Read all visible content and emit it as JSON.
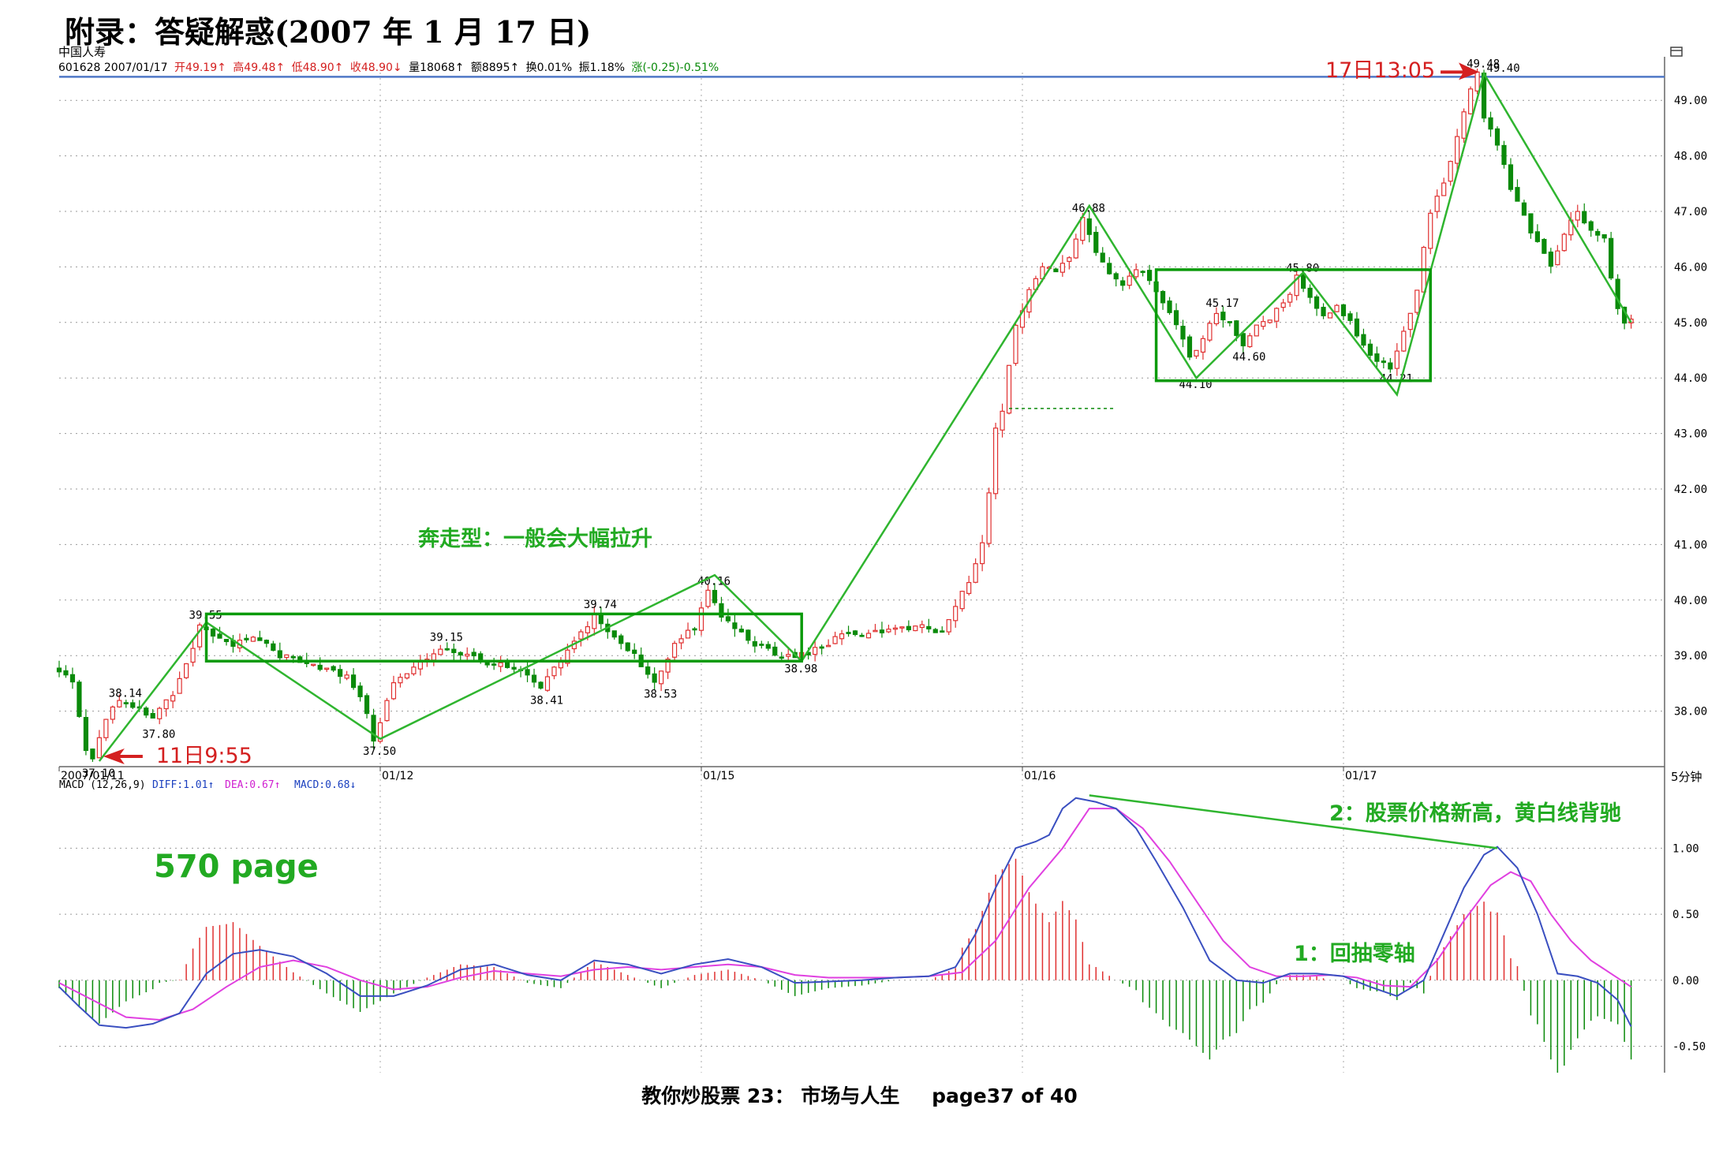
{
  "document": {
    "title": "附录：答疑解惑(2007 年 1 月 17 日)",
    "footer_left": "教你炒股票 23：  市场与人生",
    "footer_right": "page37 of 40"
  },
  "header": {
    "stock_name": "中国人寿",
    "info": {
      "code_date": "601628 2007/01/17",
      "open": "开49.19↑",
      "high": "高49.48↑",
      "low": "低48.90↑",
      "close": "收48.90↓",
      "volume": "量18068↑",
      "amount": "额8895↑",
      "turnover": "换0.01%",
      "amplitude": "振1.18%",
      "change": "涨(-0.25)-0.51%"
    },
    "corner_icon": "window-icon"
  },
  "chart_data": [
    {
      "type": "candlestick",
      "title": "",
      "interval_label": "5分钟",
      "ylim": [
        37.0,
        49.5
      ],
      "yticks": [
        "38.00",
        "39.00",
        "40.00",
        "41.00",
        "42.00",
        "43.00",
        "44.00",
        "45.00",
        "46.00",
        "47.00",
        "48.00",
        "49.00"
      ],
      "date_labels": [
        {
          "label": "2007/01/11",
          "i": 0
        },
        {
          "label": "01/12",
          "i": 48
        },
        {
          "label": "01/15",
          "i": 96
        },
        {
          "label": "01/16",
          "i": 144
        },
        {
          "label": "01/17",
          "i": 192
        }
      ],
      "price_path": [
        {
          "i": 0,
          "p": 38.8
        },
        {
          "i": 3,
          "p": 38.5
        },
        {
          "i": 5,
          "p": 37.3
        },
        {
          "i": 6,
          "p": 37.1
        },
        {
          "i": 8,
          "p": 37.9
        },
        {
          "i": 10,
          "p": 38.14
        },
        {
          "i": 13,
          "p": 38.1
        },
        {
          "i": 15,
          "p": 37.85
        },
        {
          "i": 18,
          "p": 38.3
        },
        {
          "i": 20,
          "p": 38.8
        },
        {
          "i": 22,
          "p": 39.55
        },
        {
          "i": 24,
          "p": 39.4
        },
        {
          "i": 27,
          "p": 39.2
        },
        {
          "i": 31,
          "p": 39.3
        },
        {
          "i": 34,
          "p": 39.0
        },
        {
          "i": 38,
          "p": 38.9
        },
        {
          "i": 42,
          "p": 38.7
        },
        {
          "i": 44,
          "p": 38.6
        },
        {
          "i": 46,
          "p": 38.3
        },
        {
          "i": 48,
          "p": 37.5
        },
        {
          "i": 51,
          "p": 38.5
        },
        {
          "i": 55,
          "p": 38.85
        },
        {
          "i": 58,
          "p": 39.15
        },
        {
          "i": 62,
          "p": 39.0
        },
        {
          "i": 66,
          "p": 38.85
        },
        {
          "i": 70,
          "p": 38.7
        },
        {
          "i": 73,
          "p": 38.41
        },
        {
          "i": 76,
          "p": 38.9
        },
        {
          "i": 79,
          "p": 39.4
        },
        {
          "i": 81,
          "p": 39.74
        },
        {
          "i": 84,
          "p": 39.3
        },
        {
          "i": 87,
          "p": 39.0
        },
        {
          "i": 90,
          "p": 38.53
        },
        {
          "i": 93,
          "p": 39.2
        },
        {
          "i": 96,
          "p": 39.5
        },
        {
          "i": 98,
          "p": 40.16
        },
        {
          "i": 100,
          "p": 39.7
        },
        {
          "i": 104,
          "p": 39.3
        },
        {
          "i": 108,
          "p": 39.0
        },
        {
          "i": 111,
          "p": 38.98
        },
        {
          "i": 114,
          "p": 39.1
        },
        {
          "i": 118,
          "p": 39.35
        },
        {
          "i": 124,
          "p": 39.45
        },
        {
          "i": 130,
          "p": 39.5
        },
        {
          "i": 133,
          "p": 39.4
        },
        {
          "i": 135,
          "p": 39.9
        },
        {
          "i": 137,
          "p": 40.3
        },
        {
          "i": 139,
          "p": 41.0
        },
        {
          "i": 140,
          "p": 41.9
        },
        {
          "i": 141,
          "p": 43.1
        },
        {
          "i": 142,
          "p": 43.45
        },
        {
          "i": 144,
          "p": 44.9
        },
        {
          "i": 146,
          "p": 45.6
        },
        {
          "i": 148,
          "p": 46.0
        },
        {
          "i": 150,
          "p": 45.9
        },
        {
          "i": 152,
          "p": 46.2
        },
        {
          "i": 154,
          "p": 46.88
        },
        {
          "i": 156,
          "p": 46.3
        },
        {
          "i": 158,
          "p": 45.9
        },
        {
          "i": 160,
          "p": 45.7
        },
        {
          "i": 162,
          "p": 46.0
        },
        {
          "i": 164,
          "p": 45.8
        },
        {
          "i": 166,
          "p": 45.4
        },
        {
          "i": 168,
          "p": 44.9
        },
        {
          "i": 170,
          "p": 44.4
        },
        {
          "i": 172,
          "p": 44.7
        },
        {
          "i": 174,
          "p": 45.17
        },
        {
          "i": 176,
          "p": 45.0
        },
        {
          "i": 178,
          "p": 44.6
        },
        {
          "i": 180,
          "p": 44.9
        },
        {
          "i": 182,
          "p": 45.1
        },
        {
          "i": 184,
          "p": 45.3
        },
        {
          "i": 186,
          "p": 45.8
        },
        {
          "i": 188,
          "p": 45.5
        },
        {
          "i": 190,
          "p": 45.1
        },
        {
          "i": 192,
          "p": 45.3
        },
        {
          "i": 194,
          "p": 45.0
        },
        {
          "i": 196,
          "p": 44.6
        },
        {
          "i": 198,
          "p": 44.3
        },
        {
          "i": 200,
          "p": 44.21
        },
        {
          "i": 202,
          "p": 44.8
        },
        {
          "i": 204,
          "p": 45.6
        },
        {
          "i": 206,
          "p": 47.0
        },
        {
          "i": 208,
          "p": 47.5
        },
        {
          "i": 210,
          "p": 48.3
        },
        {
          "i": 212,
          "p": 49.2
        },
        {
          "i": 213,
          "p": 49.48
        },
        {
          "i": 214,
          "p": 48.7
        },
        {
          "i": 216,
          "p": 48.2
        },
        {
          "i": 218,
          "p": 47.4
        },
        {
          "i": 220,
          "p": 46.9
        },
        {
          "i": 222,
          "p": 46.4
        },
        {
          "i": 224,
          "p": 46.0
        },
        {
          "i": 226,
          "p": 46.6
        },
        {
          "i": 228,
          "p": 47.0
        },
        {
          "i": 230,
          "p": 46.7
        },
        {
          "i": 232,
          "p": 46.5
        },
        {
          "i": 234,
          "p": 45.2
        },
        {
          "i": 235,
          "p": 45.0
        }
      ],
      "price_labels": [
        {
          "text": "38.14",
          "i": 10,
          "p": 38.14
        },
        {
          "text": "37.80",
          "i": 15,
          "p": 37.8
        },
        {
          "text": "37.10",
          "i": 6,
          "p": 37.1
        },
        {
          "text": "39.55",
          "i": 22,
          "p": 39.55
        },
        {
          "text": "37.50",
          "i": 48,
          "p": 37.5
        },
        {
          "text": "39.15",
          "i": 58,
          "p": 39.15
        },
        {
          "text": "38.41",
          "i": 73,
          "p": 38.41
        },
        {
          "text": "39.74",
          "i": 81,
          "p": 39.74
        },
        {
          "text": "38.53",
          "i": 90,
          "p": 38.53
        },
        {
          "text": "40.16",
          "i": 98,
          "p": 40.16
        },
        {
          "text": "38.98",
          "i": 111,
          "p": 38.98
        },
        {
          "text": "46.88",
          "i": 154,
          "p": 46.88
        },
        {
          "text": "45.17",
          "i": 174,
          "p": 45.17
        },
        {
          "text": "44.60",
          "i": 178,
          "p": 44.6
        },
        {
          "text": "44.10",
          "i": 170,
          "p": 44.1
        },
        {
          "text": "45.80",
          "i": 186,
          "p": 45.8
        },
        {
          "text": "44.21",
          "i": 200,
          "p": 44.21
        },
        {
          "text": "49.48",
          "i": 213,
          "p": 49.48
        },
        {
          "text": "49.40",
          "i": 216,
          "p": 49.4
        }
      ],
      "reference_line": 49.48,
      "annotations": {
        "breakaway": "奔走型：一般会大幅拉升",
        "start_time": "11日9:55",
        "end_time": "17日13:05"
      },
      "zigzag": [
        {
          "i": 6,
          "p": 37.1
        },
        {
          "i": 22,
          "p": 39.6
        },
        {
          "i": 48,
          "p": 37.5
        },
        {
          "i": 98,
          "p": 40.45
        },
        {
          "i": 111,
          "p": 38.9
        },
        {
          "i": 154,
          "p": 47.1
        },
        {
          "i": 170,
          "p": 44.0
        },
        {
          "i": 186,
          "p": 45.9
        },
        {
          "i": 200,
          "p": 43.7
        },
        {
          "i": 213,
          "p": 49.48
        },
        {
          "i": 235,
          "p": 45.0
        }
      ],
      "boxes": [
        {
          "i0": 22,
          "i1": 111,
          "p0": 38.9,
          "p1": 39.75
        },
        {
          "i0": 164,
          "i1": 205,
          "p0": 43.95,
          "p1": 45.95
        }
      ]
    },
    {
      "type": "macd",
      "title": "MACD (12,26,9)",
      "diff_label": "DIFF:1.01↑",
      "dea_label": "DEA:0.67↑",
      "macd_label": "MACD:0.68↓",
      "ylim": [
        -0.7,
        1.45
      ],
      "yticks": [
        "-0.50",
        "0.00",
        "0.50",
        "1.00"
      ],
      "diff": [
        {
          "i": 0,
          "v": -0.05
        },
        {
          "i": 3,
          "v": -0.2
        },
        {
          "i": 6,
          "v": -0.34
        },
        {
          "i": 10,
          "v": -0.36
        },
        {
          "i": 14,
          "v": -0.33
        },
        {
          "i": 18,
          "v": -0.25
        },
        {
          "i": 22,
          "v": 0.05
        },
        {
          "i": 26,
          "v": 0.2
        },
        {
          "i": 30,
          "v": 0.23
        },
        {
          "i": 35,
          "v": 0.18
        },
        {
          "i": 40,
          "v": 0.05
        },
        {
          "i": 45,
          "v": -0.12
        },
        {
          "i": 50,
          "v": -0.12
        },
        {
          "i": 55,
          "v": -0.04
        },
        {
          "i": 60,
          "v": 0.08
        },
        {
          "i": 65,
          "v": 0.12
        },
        {
          "i": 70,
          "v": 0.04
        },
        {
          "i": 75,
          "v": 0.0
        },
        {
          "i": 80,
          "v": 0.15
        },
        {
          "i": 85,
          "v": 0.12
        },
        {
          "i": 90,
          "v": 0.05
        },
        {
          "i": 95,
          "v": 0.12
        },
        {
          "i": 100,
          "v": 0.16
        },
        {
          "i": 105,
          "v": 0.1
        },
        {
          "i": 110,
          "v": -0.02
        },
        {
          "i": 115,
          "v": -0.01
        },
        {
          "i": 120,
          "v": 0.0
        },
        {
          "i": 125,
          "v": 0.02
        },
        {
          "i": 130,
          "v": 0.03
        },
        {
          "i": 134,
          "v": 0.1
        },
        {
          "i": 137,
          "v": 0.35
        },
        {
          "i": 140,
          "v": 0.7
        },
        {
          "i": 143,
          "v": 1.0
        },
        {
          "i": 146,
          "v": 1.05
        },
        {
          "i": 148,
          "v": 1.1
        },
        {
          "i": 150,
          "v": 1.3
        },
        {
          "i": 152,
          "v": 1.38
        },
        {
          "i": 155,
          "v": 1.35
        },
        {
          "i": 158,
          "v": 1.3
        },
        {
          "i": 161,
          "v": 1.15
        },
        {
          "i": 164,
          "v": 0.9
        },
        {
          "i": 168,
          "v": 0.55
        },
        {
          "i": 172,
          "v": 0.15
        },
        {
          "i": 176,
          "v": 0.0
        },
        {
          "i": 180,
          "v": -0.02
        },
        {
          "i": 184,
          "v": 0.05
        },
        {
          "i": 188,
          "v": 0.05
        },
        {
          "i": 192,
          "v": 0.03
        },
        {
          "i": 196,
          "v": -0.05
        },
        {
          "i": 200,
          "v": -0.12
        },
        {
          "i": 204,
          "v": 0.0
        },
        {
          "i": 207,
          "v": 0.35
        },
        {
          "i": 210,
          "v": 0.7
        },
        {
          "i": 213,
          "v": 0.95
        },
        {
          "i": 215,
          "v": 1.01
        },
        {
          "i": 218,
          "v": 0.85
        },
        {
          "i": 221,
          "v": 0.5
        },
        {
          "i": 224,
          "v": 0.05
        },
        {
          "i": 227,
          "v": 0.03
        },
        {
          "i": 230,
          "v": -0.02
        },
        {
          "i": 233,
          "v": -0.15
        },
        {
          "i": 235,
          "v": -0.35
        }
      ],
      "dea": [
        {
          "i": 0,
          "v": -0.02
        },
        {
          "i": 5,
          "v": -0.15
        },
        {
          "i": 10,
          "v": -0.28
        },
        {
          "i": 15,
          "v": -0.3
        },
        {
          "i": 20,
          "v": -0.22
        },
        {
          "i": 25,
          "v": -0.05
        },
        {
          "i": 30,
          "v": 0.1
        },
        {
          "i": 35,
          "v": 0.15
        },
        {
          "i": 40,
          "v": 0.1
        },
        {
          "i": 45,
          "v": 0.0
        },
        {
          "i": 50,
          "v": -0.07
        },
        {
          "i": 55,
          "v": -0.05
        },
        {
          "i": 60,
          "v": 0.02
        },
        {
          "i": 65,
          "v": 0.07
        },
        {
          "i": 70,
          "v": 0.05
        },
        {
          "i": 75,
          "v": 0.03
        },
        {
          "i": 80,
          "v": 0.08
        },
        {
          "i": 85,
          "v": 0.1
        },
        {
          "i": 90,
          "v": 0.08
        },
        {
          "i": 95,
          "v": 0.1
        },
        {
          "i": 100,
          "v": 0.12
        },
        {
          "i": 105,
          "v": 0.1
        },
        {
          "i": 110,
          "v": 0.04
        },
        {
          "i": 115,
          "v": 0.02
        },
        {
          "i": 120,
          "v": 0.02
        },
        {
          "i": 125,
          "v": 0.02
        },
        {
          "i": 130,
          "v": 0.03
        },
        {
          "i": 135,
          "v": 0.06
        },
        {
          "i": 140,
          "v": 0.3
        },
        {
          "i": 145,
          "v": 0.7
        },
        {
          "i": 150,
          "v": 1.0
        },
        {
          "i": 154,
          "v": 1.3
        },
        {
          "i": 158,
          "v": 1.3
        },
        {
          "i": 162,
          "v": 1.15
        },
        {
          "i": 166,
          "v": 0.9
        },
        {
          "i": 170,
          "v": 0.6
        },
        {
          "i": 174,
          "v": 0.3
        },
        {
          "i": 178,
          "v": 0.1
        },
        {
          "i": 182,
          "v": 0.03
        },
        {
          "i": 186,
          "v": 0.03
        },
        {
          "i": 190,
          "v": 0.04
        },
        {
          "i": 194,
          "v": 0.02
        },
        {
          "i": 198,
          "v": -0.04
        },
        {
          "i": 202,
          "v": -0.05
        },
        {
          "i": 206,
          "v": 0.15
        },
        {
          "i": 210,
          "v": 0.45
        },
        {
          "i": 214,
          "v": 0.72
        },
        {
          "i": 217,
          "v": 0.82
        },
        {
          "i": 220,
          "v": 0.75
        },
        {
          "i": 223,
          "v": 0.5
        },
        {
          "i": 226,
          "v": 0.3
        },
        {
          "i": 229,
          "v": 0.15
        },
        {
          "i": 232,
          "v": 0.05
        },
        {
          "i": 235,
          "v": -0.05
        }
      ],
      "annotations": {
        "divergence": "2：股票价格新高，黄白线背驰",
        "zero_pullback": "1：回抽零轴",
        "page_note": "570 page"
      },
      "divergence_line": [
        {
          "i": 154,
          "v": 1.4
        },
        {
          "i": 215,
          "v": 1.0
        }
      ]
    }
  ]
}
